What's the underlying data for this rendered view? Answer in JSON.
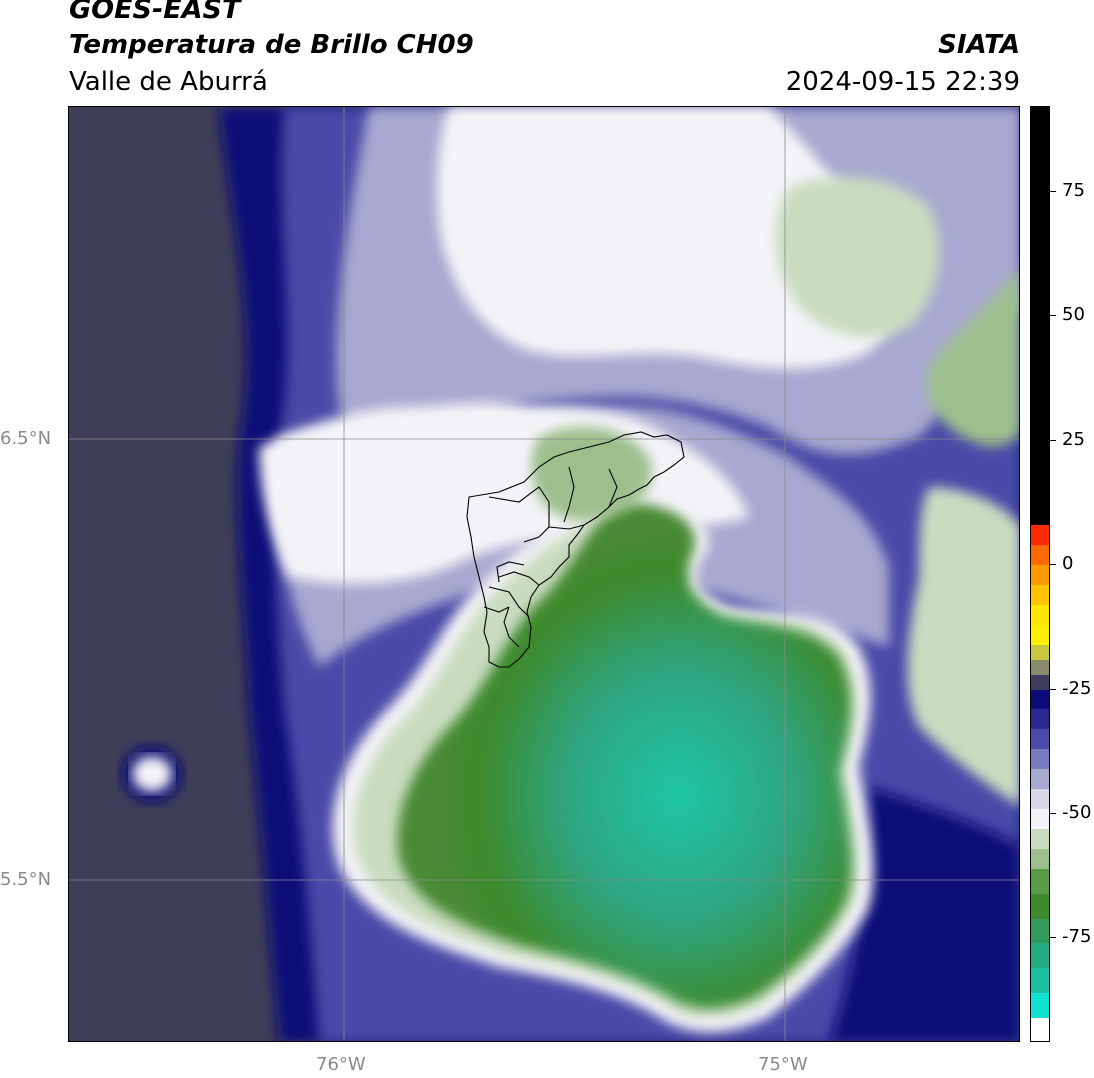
{
  "header": {
    "satellite": "GOES-EAST",
    "product": "Temperatura de Brillo CH09",
    "region": "Valle de Aburrá",
    "brand": "SIATA",
    "datetime": "2024-09-15 22:39"
  },
  "map": {
    "lat_labels": [
      "6.5°N",
      "5.5°N"
    ],
    "lon_labels": [
      "76°W",
      "75°W"
    ],
    "colors": {
      "warm": "#3e3e58",
      "navy": "#0a0a78",
      "blue": "#4a4aa8",
      "lavender": "#a8a8d0",
      "white": "#f4f4f8",
      "pale_green": "#c9dcc0",
      "green": "#3d8a2c",
      "teal": "#1ec2a0"
    }
  },
  "colorbar": {
    "tick_labels": [
      "75",
      "50",
      "25",
      "0",
      "-25",
      "-50",
      "-75"
    ],
    "tick_values": [
      75,
      50,
      25,
      0,
      -25,
      -50,
      -75
    ],
    "range": [
      -96,
      92
    ]
  }
}
